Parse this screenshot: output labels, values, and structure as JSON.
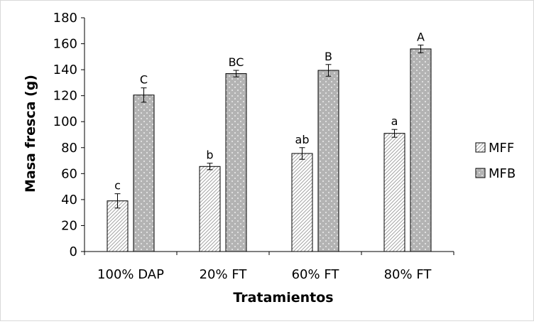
{
  "chart_data": {
    "type": "bar",
    "title": "",
    "xlabel": "Tratamientos",
    "ylabel": "Masa fresca (g)",
    "ylim": [
      0,
      180
    ],
    "yticks": [
      0,
      20,
      40,
      60,
      80,
      100,
      120,
      140,
      160,
      180
    ],
    "categories": [
      "100% DAP",
      "20% FT",
      "60% FT",
      "80% FT"
    ],
    "series": [
      {
        "name": "MFF",
        "values": [
          39,
          65.5,
          75.5,
          91
        ],
        "errors": [
          5.5,
          2.5,
          4.5,
          3
        ],
        "letters": [
          "c",
          "b",
          "ab",
          "a"
        ],
        "color": "#ffffff",
        "pattern": "diagonal-hatch"
      },
      {
        "name": "MFB",
        "values": [
          120.5,
          137,
          139.5,
          156
        ],
        "errors": [
          5.5,
          2.5,
          4.5,
          3
        ],
        "letters": [
          "C",
          "BC",
          "B",
          "A"
        ],
        "color": "#b3b3b3",
        "pattern": "dots"
      }
    ],
    "grid": false,
    "legend_position": "right"
  }
}
